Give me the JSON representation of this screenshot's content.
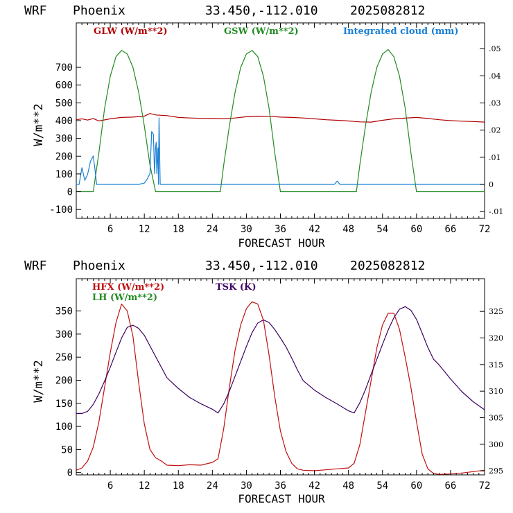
{
  "panels": [
    {
      "header": {
        "model": "WRF",
        "place": "Phoenix",
        "coords": "33.450,-112.010",
        "date": "2025082812"
      }
    },
    {
      "header": {
        "model": "WRF",
        "place": "Phoenix",
        "coords": "33.450,-112.010",
        "date": "2025082812"
      }
    }
  ],
  "colors": {
    "glw": "#b00000",
    "gsw": "#228b22",
    "cloud": "#1a7fd4",
    "hfx": "#c01010",
    "lh": "#228b22",
    "tsk": "#3a0060"
  },
  "chart_data": [
    {
      "type": "line",
      "xlabel": "FORECAST HOUR",
      "ylabel": "W/m**2",
      "xlim": [
        0,
        72
      ],
      "ylim": [
        -150,
        950
      ],
      "x_ticks": [
        6,
        12,
        18,
        24,
        30,
        36,
        42,
        48,
        54,
        60,
        66,
        72
      ],
      "x_tick_labels": [
        "6",
        "12",
        "18",
        "24",
        "30",
        "36",
        "42",
        "48",
        "54",
        "60",
        "66",
        "72"
      ],
      "y_ticks": [
        -100,
        0,
        100,
        200,
        300,
        400,
        500,
        600,
        700
      ],
      "y_tick_labels": [
        "-100",
        "0",
        "100",
        "200",
        "300",
        "400",
        "500",
        "600",
        "700"
      ],
      "y2lim": [
        -0.0125,
        0.0595
      ],
      "y2_ticks": [
        -0.01,
        0,
        0.01,
        0.02,
        0.03,
        0.04,
        0.05
      ],
      "y2_tick_labels": [
        "-.01",
        "0",
        ".01",
        ".02",
        ".03",
        ".04",
        ".05"
      ],
      "legend": [
        "GLW (W/m**2)",
        "GSW (W/m**2)",
        "Integrated cloud (mm)"
      ],
      "series": [
        {
          "name": "GLW (W/m**2)",
          "axis": "left",
          "x": [
            0,
            1,
            2,
            3,
            4,
            6,
            8,
            10,
            12,
            13,
            14,
            16,
            18,
            20,
            22,
            24,
            26,
            28,
            30,
            32,
            34,
            36,
            38,
            40,
            42,
            44,
            46,
            48,
            50,
            52,
            54,
            56,
            58,
            60,
            62,
            64,
            66,
            68,
            70,
            72
          ],
          "values": [
            405,
            410,
            403,
            412,
            398,
            410,
            418,
            420,
            425,
            440,
            432,
            428,
            418,
            415,
            413,
            412,
            410,
            415,
            422,
            425,
            424,
            420,
            418,
            415,
            410,
            405,
            402,
            398,
            393,
            392,
            402,
            410,
            414,
            418,
            412,
            405,
            400,
            397,
            395,
            392
          ]
        },
        {
          "name": "GSW (W/m**2)",
          "axis": "left",
          "x": [
            0,
            2,
            3,
            4,
            5,
            6,
            7,
            8,
            9,
            10,
            11,
            12,
            13,
            14,
            15,
            16,
            25.4,
            26,
            27,
            28,
            29,
            30,
            31,
            32,
            33,
            34,
            35,
            36,
            37,
            38,
            39,
            40,
            49.4,
            50,
            51,
            52,
            53,
            54,
            55,
            56,
            57,
            58,
            59,
            60,
            61,
            62,
            63,
            64,
            72
          ],
          "values": [
            0,
            0,
            0,
            220,
            470,
            650,
            760,
            795,
            775,
            700,
            560,
            370,
            150,
            0,
            0,
            0,
            0,
            150,
            370,
            560,
            700,
            775,
            795,
            760,
            650,
            470,
            220,
            0,
            0,
            0,
            0,
            0,
            0,
            150,
            370,
            560,
            700,
            775,
            800,
            760,
            650,
            470,
            220,
            0,
            0,
            0,
            0,
            0,
            0
          ]
        },
        {
          "name": "Integrated cloud (mm)",
          "axis": "right",
          "x": [
            0,
            0.5,
            1.0,
            1.5,
            2.0,
            2.5,
            3.0,
            3.3,
            3.6,
            4.0,
            4.5,
            5.0,
            5.5,
            6.0,
            7.0,
            8.0,
            9.0,
            9.5,
            10.0,
            11.0,
            12.0,
            12.5,
            13.0,
            13.3,
            13.6,
            13.8,
            14.0,
            14.1,
            14.2,
            14.4,
            14.5,
            14.6,
            14.8,
            15.0,
            15.5,
            16.0,
            20,
            30,
            40,
            45,
            45.5,
            46,
            46.5,
            47,
            50,
            60,
            72
          ],
          "values": [
            0,
            0,
            0.0062,
            0.0015,
            0.0038,
            0.0085,
            0.0105,
            0.0055,
            0.0,
            0.0,
            0.0,
            0.0,
            0.0,
            0.0,
            0.0,
            0.0,
            0.0,
            0.0,
            0.0,
            0.0,
            0.0005,
            0.002,
            0.004,
            0.0195,
            0.0185,
            0.004,
            0.014,
            0.0155,
            0.004,
            0.0135,
            0.0,
            0.0245,
            0.0,
            0.0,
            0.0,
            0.0,
            0.0,
            0.0,
            0.0,
            0.0,
            0.0,
            0.0012,
            0.0,
            0.0,
            0.0,
            0.0,
            0.0
          ]
        }
      ]
    },
    {
      "type": "line",
      "xlabel": "FORECAST HOUR",
      "ylabel": "W/m**2",
      "xlim": [
        0,
        72
      ],
      "ylim": [
        -5,
        420
      ],
      "x_ticks": [
        6,
        12,
        18,
        24,
        30,
        36,
        42,
        48,
        54,
        60,
        66,
        72
      ],
      "x_tick_labels": [
        "6",
        "12",
        "18",
        "24",
        "30",
        "36",
        "42",
        "48",
        "54",
        "60",
        "66",
        "72"
      ],
      "y_ticks": [
        0,
        50,
        100,
        150,
        200,
        250,
        300,
        350
      ],
      "y_tick_labels": [
        "0",
        "50",
        "100",
        "150",
        "200",
        "250",
        "300",
        "350"
      ],
      "y2lim": [
        294.25,
        331.15
      ],
      "y2_ticks": [
        295,
        300,
        305,
        310,
        315,
        320,
        325
      ],
      "y2_tick_labels": [
        "295",
        "300",
        "305",
        "310",
        "315",
        "320",
        "325"
      ],
      "legend": [
        "HFX (W/m**2)",
        "LH  (W/m**2)",
        "TSK (K)"
      ],
      "series": [
        {
          "name": "HFX (W/m**2)",
          "axis": "left",
          "x": [
            0,
            1,
            2,
            3,
            4,
            5,
            6,
            7,
            8,
            9,
            10,
            11,
            12,
            13,
            14,
            15,
            16,
            18,
            20,
            22,
            24,
            25,
            26,
            27,
            28,
            29,
            30,
            31,
            32,
            33,
            34,
            35,
            36,
            37,
            38,
            39,
            40,
            42,
            44,
            46,
            48,
            49,
            50,
            51,
            52,
            53,
            54,
            55,
            56,
            57,
            58,
            59,
            60,
            61,
            62,
            63,
            64,
            66,
            68,
            70,
            72
          ],
          "values": [
            5,
            10,
            25,
            55,
            110,
            185,
            260,
            325,
            365,
            350,
            295,
            195,
            105,
            50,
            32,
            25,
            16,
            15,
            17,
            16,
            22,
            30,
            95,
            185,
            265,
            320,
            355,
            370,
            365,
            330,
            255,
            165,
            90,
            45,
            20,
            8,
            5,
            4,
            6,
            8,
            10,
            20,
            60,
            130,
            200,
            270,
            320,
            345,
            345,
            310,
            250,
            185,
            110,
            40,
            8,
            -2,
            -4,
            -3,
            -1,
            2,
            5
          ]
        },
        {
          "name": "TSK (K)",
          "axis": "right",
          "x": [
            0,
            1,
            2,
            3,
            4,
            5,
            6,
            7,
            8,
            9,
            10,
            11,
            12,
            13,
            14,
            15,
            16,
            18,
            20,
            22,
            24,
            25,
            26,
            27,
            28,
            29,
            30,
            31,
            32,
            33,
            34,
            35,
            36,
            37,
            38,
            39,
            40,
            42,
            44,
            46,
            48,
            49,
            50,
            51,
            52,
            53,
            54,
            55,
            56,
            57,
            58,
            59,
            60,
            61,
            62,
            63,
            64,
            66,
            68,
            70,
            72
          ],
          "values": [
            305.8,
            305.8,
            306.2,
            307.5,
            309.5,
            311.9,
            314.5,
            317.3,
            320.0,
            322.0,
            322.4,
            321.8,
            320.5,
            318.5,
            316.5,
            314.5,
            312.5,
            310.5,
            308.8,
            307.6,
            306.6,
            305.9,
            307.6,
            310.0,
            312.8,
            315.6,
            318.4,
            321.0,
            322.8,
            323.4,
            322.9,
            321.6,
            320.0,
            318.3,
            316.2,
            314.0,
            312.0,
            310.2,
            308.8,
            307.6,
            306.3,
            305.9,
            307.8,
            310.3,
            313.2,
            316.0,
            318.8,
            321.5,
            323.8,
            325.4,
            325.9,
            325.2,
            323.5,
            320.9,
            318.2,
            316.0,
            314.9,
            312.3,
            309.9,
            308.0,
            306.5
          ]
        }
      ]
    }
  ]
}
